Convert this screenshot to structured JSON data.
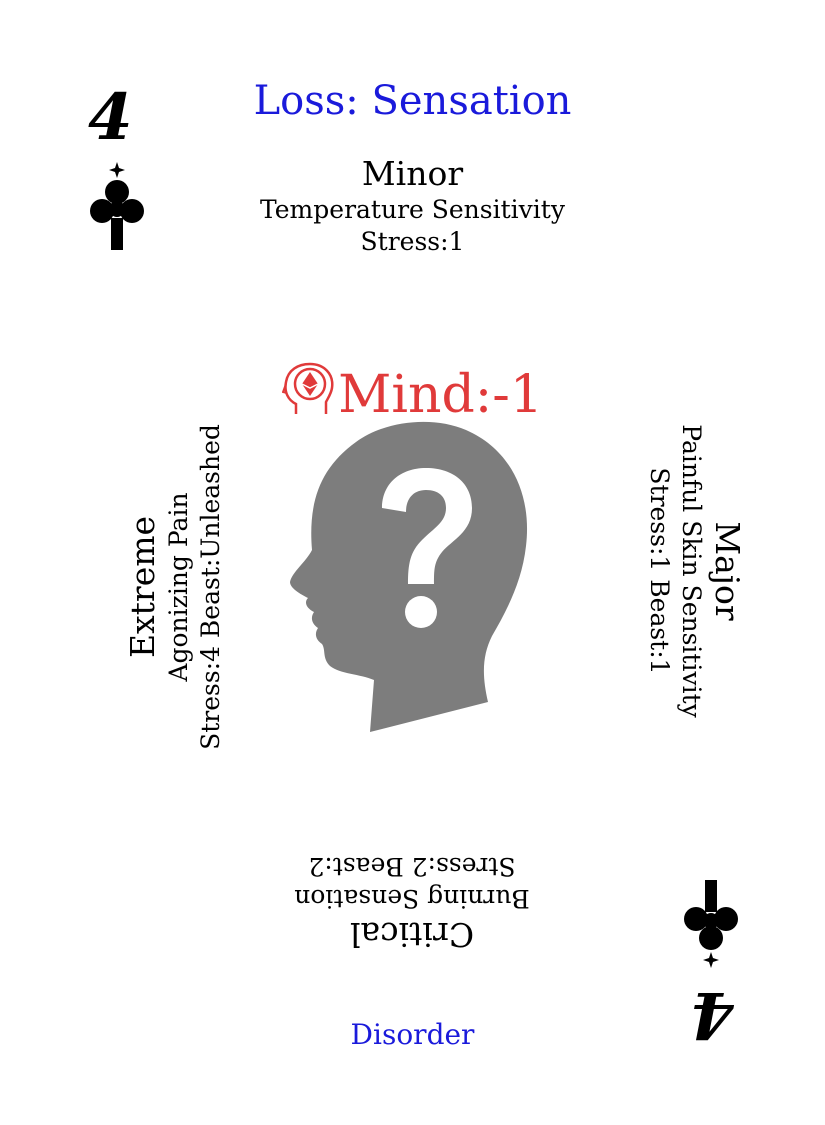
{
  "card": {
    "rank": "4",
    "suit_icon": "club-icon",
    "title": "Loss: Sensation",
    "title_color": "#1a1adb",
    "stat": {
      "icon": "mind-head-icon",
      "label": "Mind:-1",
      "color": "#e03a3a"
    },
    "center_icon": "question-head-icon",
    "footer": "Disorder",
    "footer_color": "#1a1adb"
  },
  "severities": {
    "minor": {
      "name": "Minor",
      "effect": "Temperature Sensitivity",
      "stats": "Stress:1"
    },
    "major": {
      "name": "Major",
      "effect": "Painful Skin Sensitivity",
      "stats": "Stress:1 Beast:1"
    },
    "critical": {
      "name": "Critical",
      "effect": "Burning Sensation",
      "stats": "Stress:2 Beast:2"
    },
    "extreme": {
      "name": "Extreme",
      "effect": "Agonizing Pain",
      "stats": "Stress:4 Beast:Unleashed"
    }
  }
}
